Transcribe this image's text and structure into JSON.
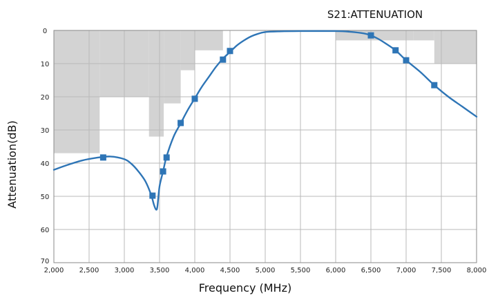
{
  "chart_data": {
    "type": "line",
    "title": "S21:ATTENUATION",
    "xlabel": "Frequency (MHz)",
    "ylabel": "Attenuation(dB)",
    "xlim": [
      2000,
      8000
    ],
    "ylim": [
      0,
      70
    ],
    "y_inverted": true,
    "grid": true,
    "legend": "none",
    "x_ticks": [
      2000,
      2500,
      3000,
      3500,
      4000,
      4500,
      5000,
      5500,
      6000,
      6500,
      7000,
      7500,
      8000
    ],
    "x_tick_labels": [
      "2,000",
      "2,500",
      "3,000",
      "3,500",
      "4,000",
      "4,500",
      "5,000",
      "5,500",
      "6,000",
      "6,500",
      "7,000",
      "7,500",
      "8,000"
    ],
    "y_ticks": [
      0,
      10,
      20,
      30,
      40,
      50,
      60,
      70
    ],
    "y_tick_labels": [
      "0",
      "10",
      "20",
      "30",
      "40",
      "50",
      "60",
      "70"
    ],
    "colors": {
      "line": "#2e75b6",
      "marker": "#2e75b6",
      "mask": "#d3d3d3",
      "grid": "#b9b9b9",
      "border": "#8a8a8a"
    },
    "series": [
      {
        "x": [
          2000,
          2200,
          2400,
          2600,
          2800,
          3000,
          3100,
          3200,
          3300,
          3380,
          3420,
          3450,
          3470,
          3500,
          3550,
          3600,
          3700,
          3800,
          3900,
          4000,
          4100,
          4200,
          4300,
          4400,
          4500,
          4600,
          4700,
          4800,
          4900,
          5000,
          5200,
          5500,
          6000,
          6200,
          6400,
          6500,
          6600,
          6700,
          6850,
          7000,
          7200,
          7400,
          7600,
          7800,
          8000
        ],
        "y": [
          42,
          40.5,
          39.2,
          38.4,
          38,
          38.8,
          40.2,
          42.5,
          45.5,
          49.5,
          52.5,
          54,
          53,
          47,
          42.5,
          38,
          32,
          28,
          24,
          20.5,
          17,
          14,
          11,
          8.5,
          6.5,
          4.5,
          3,
          1.8,
          1,
          0.5,
          0.3,
          0.2,
          0.2,
          0.4,
          0.9,
          1.5,
          2.5,
          3.8,
          6,
          9,
          12.5,
          16.5,
          20,
          23,
          26
        ]
      }
    ],
    "markers": {
      "x": [
        2700,
        3400,
        3550,
        3600,
        3800,
        4000,
        4400,
        4500,
        6500,
        6850,
        7000,
        7400
      ],
      "y": [
        38.3,
        49.8,
        42.5,
        38.3,
        27.9,
        20.6,
        8.8,
        6.2,
        1.5,
        6,
        9,
        16.5
      ]
    },
    "mask_regions": [
      {
        "x": [
          2000,
          2650
        ],
        "y": [
          0,
          37
        ]
      },
      {
        "x": [
          2650,
          3000
        ],
        "y": [
          0,
          20
        ]
      },
      {
        "x": [
          3000,
          3350
        ],
        "y": [
          0,
          20
        ]
      },
      {
        "x": [
          3350,
          3560
        ],
        "y": [
          0,
          32
        ]
      },
      {
        "x": [
          3560,
          3800
        ],
        "y": [
          0,
          22
        ]
      },
      {
        "x": [
          3800,
          4000
        ],
        "y": [
          0,
          12
        ]
      },
      {
        "x": [
          4000,
          4400
        ],
        "y": [
          0,
          6
        ]
      },
      {
        "x": [
          6000,
          7100
        ],
        "y": [
          0,
          3
        ]
      },
      {
        "x": [
          7100,
          7400
        ],
        "y": [
          0,
          3
        ]
      },
      {
        "x": [
          7400,
          8000
        ],
        "y": [
          0,
          10
        ]
      }
    ]
  }
}
